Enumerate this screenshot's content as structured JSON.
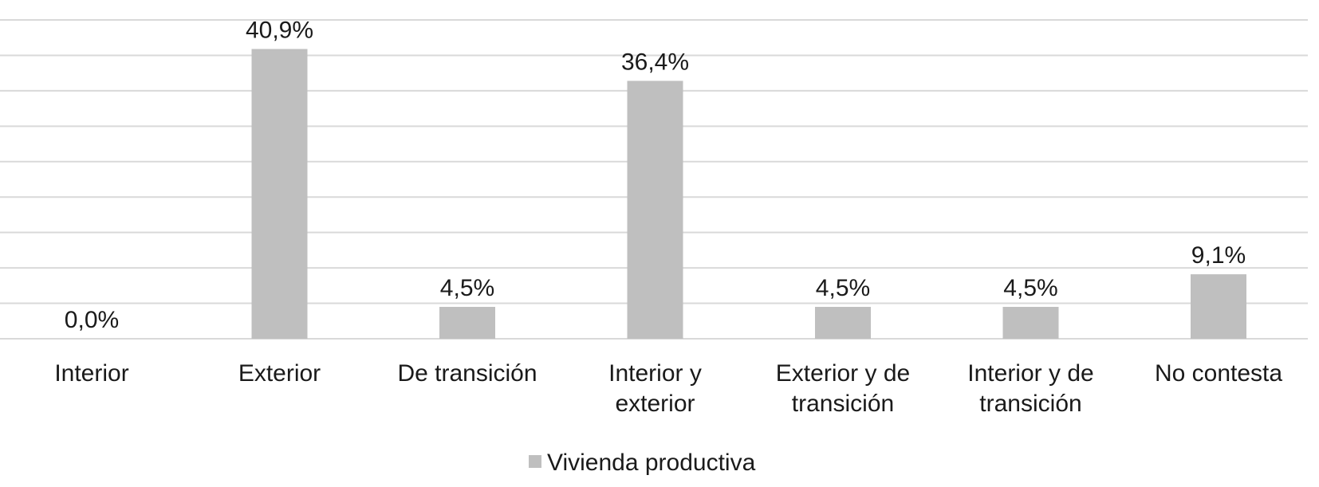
{
  "chart_data": {
    "type": "bar",
    "categories": [
      [
        "Interior"
      ],
      [
        "Exterior"
      ],
      [
        "De transición"
      ],
      [
        "Interior y",
        "exterior"
      ],
      [
        "Exterior y de",
        "transición"
      ],
      [
        "Interior y de",
        "transición"
      ],
      [
        "No contesta"
      ]
    ],
    "series": [
      {
        "name": "Vivienda productiva",
        "values": [
          0.0,
          40.9,
          4.5,
          36.4,
          4.5,
          4.5,
          9.1
        ],
        "labels": [
          "0,0%",
          "40,9%",
          "4,5%",
          "36,4%",
          "4,5%",
          "4,5%",
          "9,1%"
        ],
        "color": "#bfbfbf"
      }
    ],
    "ylim": [
      0,
      45
    ],
    "ytick_step": 5,
    "grid": true,
    "y_axis_labels_visible": false,
    "legend_position": "bottom"
  }
}
